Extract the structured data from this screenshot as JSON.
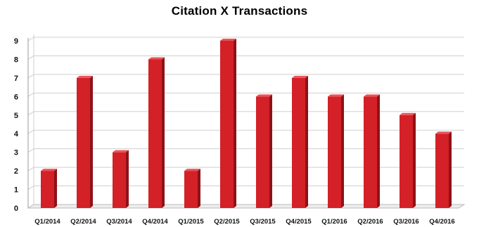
{
  "chart_data": {
    "type": "bar",
    "title": "Citation X Transactions",
    "categories": [
      "Q1/2014",
      "Q2/2014",
      "Q3/2014",
      "Q4/2014",
      "Q1/2015",
      "Q2/2015",
      "Q3/2015",
      "Q4/2015",
      "Q1/2016",
      "Q2/2016",
      "Q3/2016",
      "Q4/2016"
    ],
    "values": [
      2,
      7,
      3,
      8,
      2,
      9,
      6,
      7,
      6,
      6,
      5,
      4
    ],
    "ylim": [
      0,
      9
    ],
    "yticks": [
      0,
      1,
      2,
      3,
      4,
      5,
      6,
      7,
      8,
      9
    ],
    "grid": true,
    "bar_color": "#d42027",
    "bar_side_color": "#8e1218",
    "bar_top_color": "#e8545a"
  }
}
